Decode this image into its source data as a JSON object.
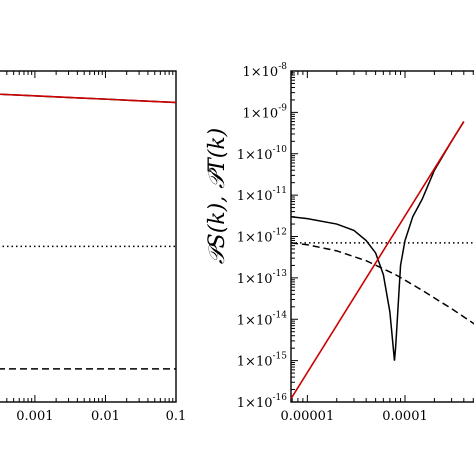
{
  "chart_data": [
    {
      "type": "line",
      "xscale": "log",
      "xlim": [
        0.0003,
        0.1
      ],
      "ylim": [
        0,
        1
      ],
      "xticks": [
        {
          "value": 0.001,
          "label": "0.001"
        },
        {
          "value": 0.01,
          "label": "0.01"
        },
        {
          "value": 0.1,
          "label": "0.1"
        }
      ],
      "series": [
        {
          "style": "solid",
          "color": "#000000",
          "x": [
            0.0003,
            0.001,
            0.003,
            0.01,
            0.03,
            0.1
          ],
          "y": [
            0.93,
            0.925,
            0.92,
            0.915,
            0.91,
            0.905
          ]
        },
        {
          "style": "solid",
          "color": "#cc0000",
          "x": [
            0.0003,
            0.001,
            0.003,
            0.01,
            0.03,
            0.1
          ],
          "y": [
            0.93,
            0.925,
            0.92,
            0.915,
            0.91,
            0.905
          ]
        },
        {
          "style": "dotted",
          "color": "#000000",
          "x": [
            0.0003,
            0.1
          ],
          "y": [
            0.47,
            0.47
          ]
        },
        {
          "style": "dashed",
          "color": "#000000",
          "x": [
            0.0003,
            0.1
          ],
          "y": [
            0.1,
            0.1
          ]
        }
      ]
    },
    {
      "type": "line",
      "xscale": "log",
      "yscale": "log",
      "xlim": [
        6.8e-06,
        0.0006
      ],
      "ylim": [
        1e-16,
        1e-08
      ],
      "xticks": [
        {
          "value": 1e-05,
          "label": "0.00001"
        },
        {
          "value": 0.0001,
          "label": "0.0001"
        }
      ],
      "yticks": [
        {
          "exp": -16,
          "base": "1×10",
          "sup": "-16"
        },
        {
          "exp": -15,
          "base": "1×10",
          "sup": "-15"
        },
        {
          "exp": -14,
          "base": "1×10",
          "sup": "-14"
        },
        {
          "exp": -13,
          "base": "1×10",
          "sup": "-13"
        },
        {
          "exp": -12,
          "base": "1×10",
          "sup": "-12"
        },
        {
          "exp": -11,
          "base": "1×10",
          "sup": "-11"
        },
        {
          "exp": -10,
          "base": "1×10",
          "sup": "-10"
        },
        {
          "exp": -9,
          "base": "1×10",
          "sup": "-9"
        },
        {
          "exp": -8,
          "base": "1×10",
          "sup": "-8"
        }
      ],
      "ylabel": "𝒫S(k), 𝒫T(k)",
      "series": [
        {
          "style": "solid",
          "color": "#000000",
          "x": [
            6.8e-06,
            1e-05,
            2e-05,
            3e-05,
            4e-05,
            5e-05,
            6e-05,
            7e-05,
            7.8e-05,
            8e-05,
            8.2e-05,
            9e-05,
            0.0001,
            0.00012,
            0.00015,
            0.0002,
            0.0003,
            0.0004
          ],
          "y": [
            3e-12,
            2.7e-12,
            2e-12,
            1.4e-12,
            8e-13,
            4e-13,
            1.2e-13,
            1.5e-14,
            1e-15,
            2e-15,
            5e-15,
            2e-13,
            8e-13,
            3e-12,
            8e-12,
            4e-11,
            2e-10,
            6e-10
          ]
        },
        {
          "style": "solid",
          "color": "#cc0000",
          "x": [
            6.8e-06,
            0.0004
          ],
          "y": [
            1.2e-16,
            6e-10
          ]
        },
        {
          "style": "dotted",
          "color": "#000000",
          "x": [
            6.8e-06,
            0.0006
          ],
          "y": [
            7e-13,
            7e-13
          ]
        },
        {
          "style": "dashed",
          "color": "#000000",
          "x": [
            6.8e-06,
            1e-05,
            2e-05,
            4e-05,
            8e-05,
            0.00015,
            0.0003,
            0.0006
          ],
          "y": [
            7e-13,
            6.3e-13,
            4.5e-13,
            2.6e-13,
            1.2e-13,
            5e-14,
            1.8e-14,
            6e-15
          ]
        }
      ]
    }
  ]
}
